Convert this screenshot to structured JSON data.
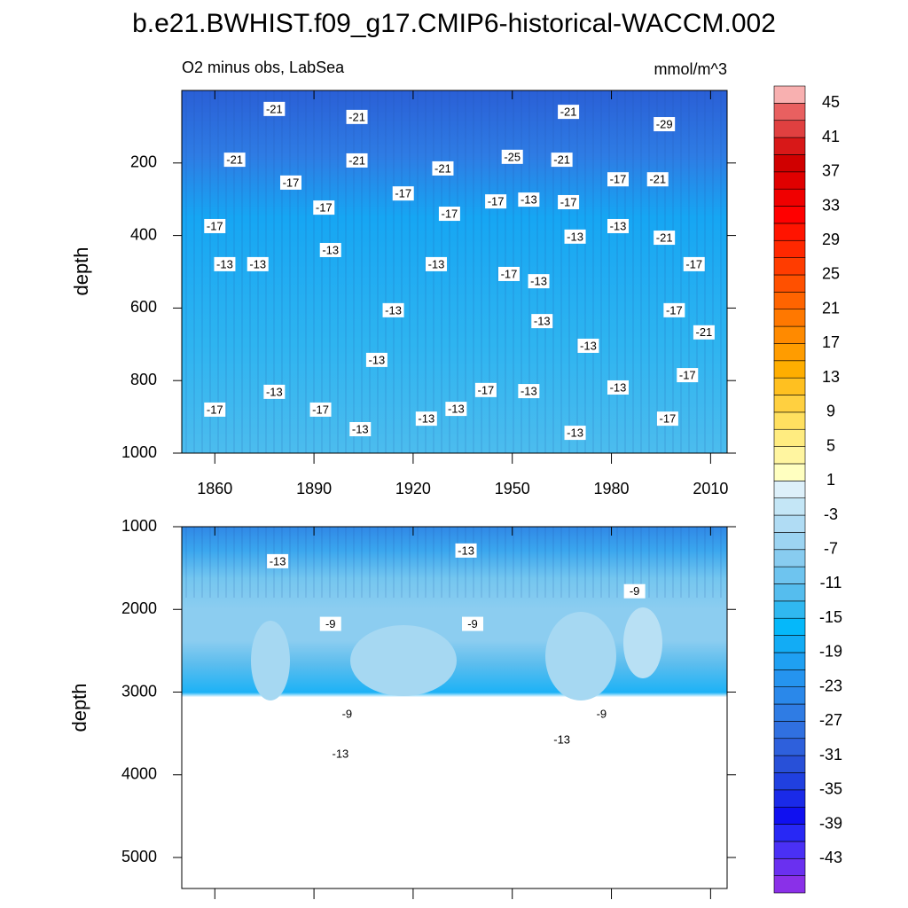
{
  "title": "b.e21.BWHIST.f09_g17.CMIP6-historical-WACCM.002",
  "colorbar": {
    "lim": [
      -47,
      47
    ],
    "ticks": [
      45,
      41,
      37,
      33,
      29,
      25,
      21,
      17,
      13,
      9,
      5,
      1,
      -3,
      -7,
      -11,
      -15,
      -19,
      -23,
      -27,
      -31,
      -35,
      -39,
      -43
    ],
    "colors": [
      "#8a30e8",
      "#6a30f0",
      "#4a30f5",
      "#2828f5",
      "#1010f0",
      "#1a2ae8",
      "#2040e0",
      "#2850d8",
      "#2e60dc",
      "#3070e0",
      "#2f7ce4",
      "#2a88ea",
      "#2594ef",
      "#1fa0f2",
      "#12acf5",
      "#05b8fa",
      "#30b8f0",
      "#55bdee",
      "#6ec4ef",
      "#88ccf0",
      "#9cd4f2",
      "#b0dcf4",
      "#c4e6f6",
      "#ddf0fa",
      "#ffffc0",
      "#fff5a0",
      "#ffec80",
      "#ffe060",
      "#ffd040",
      "#ffc020",
      "#ffae00",
      "#ff9c00",
      "#ff8a00",
      "#ff7800",
      "#ff6400",
      "#ff5000",
      "#ff3c00",
      "#ff2800",
      "#ff1400",
      "#ff0000",
      "#f00000",
      "#e00000",
      "#d00000",
      "#d81818",
      "#e04040",
      "#e86060",
      "#f8b0b0"
    ]
  },
  "chart_data": [
    {
      "type": "contour",
      "subtitle_left": "O2 minus obs, LabSea",
      "subtitle_right": "mmol/m^3",
      "ylabel": "depth",
      "xlim": [
        1850,
        2015
      ],
      "xticks": [
        1860,
        1890,
        1920,
        1950,
        1980,
        2010
      ],
      "ylim": [
        1000,
        0
      ],
      "yticks": [
        200,
        400,
        600,
        800,
        1000
      ],
      "contour_labels": [
        {
          "x": 1878,
          "y": 51,
          "value": -21
        },
        {
          "x": 1903,
          "y": 73,
          "value": -21
        },
        {
          "x": 1967,
          "y": 59,
          "value": -21
        },
        {
          "x": 1996,
          "y": 93,
          "value": -29
        },
        {
          "x": 1866,
          "y": 191,
          "value": -21
        },
        {
          "x": 1903,
          "y": 193,
          "value": -21
        },
        {
          "x": 1929,
          "y": 215,
          "value": -21
        },
        {
          "x": 1950,
          "y": 183,
          "value": -25
        },
        {
          "x": 1965,
          "y": 191,
          "value": -21
        },
        {
          "x": 1994,
          "y": 245,
          "value": -21
        },
        {
          "x": 1883,
          "y": 254,
          "value": -17
        },
        {
          "x": 1917,
          "y": 284,
          "value": -17
        },
        {
          "x": 1893,
          "y": 323,
          "value": -17
        },
        {
          "x": 1931,
          "y": 340,
          "value": -17
        },
        {
          "x": 1945,
          "y": 306,
          "value": -17
        },
        {
          "x": 1955,
          "y": 301,
          "value": -13
        },
        {
          "x": 1967,
          "y": 308,
          "value": -17
        },
        {
          "x": 1982,
          "y": 245,
          "value": -17
        },
        {
          "x": 1860,
          "y": 374,
          "value": -17
        },
        {
          "x": 1982,
          "y": 374,
          "value": -13
        },
        {
          "x": 1969,
          "y": 403,
          "value": -13
        },
        {
          "x": 1996,
          "y": 406,
          "value": -21
        },
        {
          "x": 1895,
          "y": 440,
          "value": -13
        },
        {
          "x": 1863,
          "y": 479,
          "value": -13
        },
        {
          "x": 1873,
          "y": 479,
          "value": -13
        },
        {
          "x": 1927,
          "y": 479,
          "value": -13
        },
        {
          "x": 1949,
          "y": 506,
          "value": -17
        },
        {
          "x": 1958,
          "y": 526,
          "value": -13
        },
        {
          "x": 2005,
          "y": 479,
          "value": -17
        },
        {
          "x": 1914,
          "y": 606,
          "value": -13
        },
        {
          "x": 1959,
          "y": 636,
          "value": -13
        },
        {
          "x": 1999,
          "y": 606,
          "value": -17
        },
        {
          "x": 2008,
          "y": 667,
          "value": -21
        },
        {
          "x": 1973,
          "y": 704,
          "value": -13
        },
        {
          "x": 1909,
          "y": 743,
          "value": -13
        },
        {
          "x": 2003,
          "y": 785,
          "value": -17
        },
        {
          "x": 1878,
          "y": 831,
          "value": -13
        },
        {
          "x": 1942,
          "y": 826,
          "value": -17
        },
        {
          "x": 1955,
          "y": 829,
          "value": -13
        },
        {
          "x": 1982,
          "y": 819,
          "value": -13
        },
        {
          "x": 1860,
          "y": 880,
          "value": -17
        },
        {
          "x": 1892,
          "y": 880,
          "value": -17
        },
        {
          "x": 1933,
          "y": 878,
          "value": -13
        },
        {
          "x": 1924,
          "y": 905,
          "value": -13
        },
        {
          "x": 1997,
          "y": 905,
          "value": -17
        },
        {
          "x": 1904,
          "y": 934,
          "value": -13
        },
        {
          "x": 1969,
          "y": 944,
          "value": -13
        }
      ]
    },
    {
      "type": "contour",
      "ylabel": "depth",
      "xlim": [
        1850,
        2015
      ],
      "xticks": [
        1860,
        1890,
        1920,
        1950,
        1980,
        2010
      ],
      "ylim": [
        5375,
        1000
      ],
      "yticks": [
        1000,
        2000,
        3000,
        4000,
        5000
      ],
      "contour_labels": [
        {
          "x": 1879,
          "y": 1417,
          "value": -13
        },
        {
          "x": 1936,
          "y": 1288,
          "value": -13
        },
        {
          "x": 1987,
          "y": 1780,
          "value": -9
        },
        {
          "x": 1895,
          "y": 2175,
          "value": -9
        },
        {
          "x": 1938,
          "y": 2175,
          "value": -9
        },
        {
          "x": 1900,
          "y": 3264,
          "value": -9
        },
        {
          "x": 1977,
          "y": 3264,
          "value": -9
        },
        {
          "x": 1965,
          "y": 3574,
          "value": -13
        },
        {
          "x": 1898,
          "y": 3745,
          "value": -13
        }
      ]
    }
  ]
}
